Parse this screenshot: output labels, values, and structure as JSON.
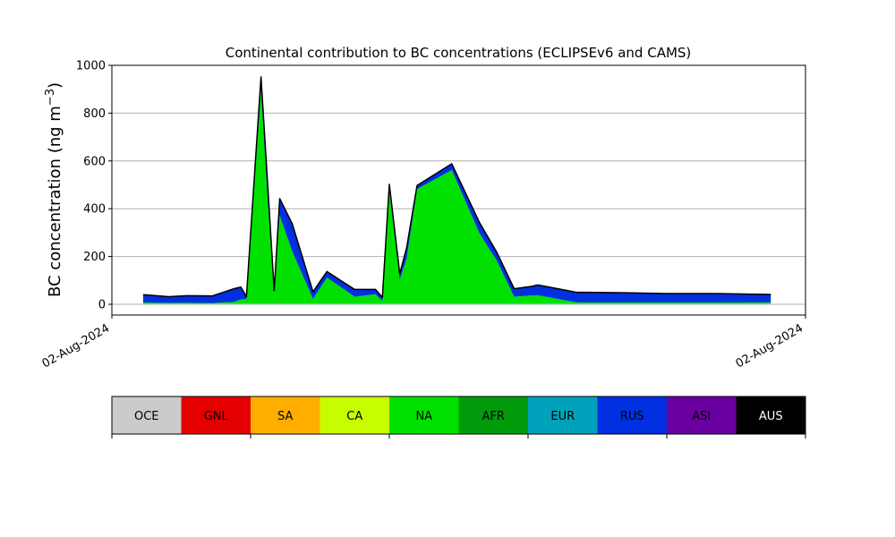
{
  "chart_data": {
    "type": "area",
    "title": "Continental contribution to BC concentrations (ECLIPSEv6 and CAMS)",
    "ylabel": "BC concentration (ng m",
    "ylabel_superscript": "−3",
    "ylabel_close": ")",
    "ylim": [
      -45,
      1000
    ],
    "yticks": [
      0,
      200,
      400,
      600,
      800,
      1000
    ],
    "xtick_labels": [
      "02-Aug-2024",
      "02-Aug-2024"
    ],
    "xlim": [
      0,
      100
    ],
    "grid": "horizontal",
    "stacked": true,
    "x": [
      4.5,
      6.4,
      8.2,
      10.8,
      14.5,
      17.6,
      18.6,
      19.4,
      21.5,
      22.4,
      23.4,
      24.2,
      26.0,
      29.0,
      31.0,
      35.0,
      38.0,
      39.0,
      40.0,
      41.5,
      42.5,
      44.0,
      49.0,
      53.0,
      55.5,
      58.0,
      60.5,
      61.4,
      67.0,
      68.5,
      74.0,
      80.0,
      87.0,
      95.0
    ],
    "series": [
      {
        "name": "OCE",
        "values": [
          2,
          2,
          2,
          2,
          2,
          2,
          2,
          2,
          2,
          2,
          2,
          2,
          2,
          2,
          2,
          2,
          2,
          2,
          2,
          2,
          2,
          2,
          2,
          2,
          2,
          2,
          2,
          2,
          2,
          2,
          2,
          2,
          2,
          2
        ]
      },
      {
        "name": "GNL",
        "values": [
          0,
          0,
          0,
          0,
          0,
          0,
          0,
          0,
          0,
          0,
          0,
          0,
          0,
          0,
          0,
          0,
          0,
          0,
          0,
          0,
          0,
          0,
          0,
          0,
          0,
          0,
          0,
          0,
          0,
          0,
          0,
          0,
          0,
          0
        ]
      },
      {
        "name": "SA",
        "values": [
          0,
          0,
          0,
          0,
          0,
          0,
          0,
          0,
          0,
          0,
          0,
          0,
          0,
          0,
          0,
          0,
          0,
          0,
          0,
          0,
          0,
          0,
          0,
          0,
          0,
          0,
          0,
          0,
          0,
          0,
          0,
          0,
          0,
          0
        ]
      },
      {
        "name": "CA",
        "values": [
          0,
          0,
          0,
          0,
          0,
          0,
          0,
          0,
          0,
          0,
          0,
          0,
          0,
          0,
          0,
          0,
          0,
          0,
          0,
          0,
          0,
          0,
          0,
          0,
          0,
          0,
          0,
          0,
          0,
          0,
          0,
          0,
          0,
          0
        ]
      },
      {
        "name": "NA",
        "values": [
          6,
          4,
          4,
          4,
          3,
          8,
          18,
          20,
          895,
          460,
          45,
          370,
          220,
          20,
          110,
          30,
          40,
          12,
          470,
          100,
          190,
          480,
          560,
          295,
          180,
          30,
          35,
          36,
          6,
          6,
          6,
          6,
          6,
          6
        ]
      },
      {
        "name": "AFR",
        "values": [
          0,
          0,
          0,
          0,
          0,
          0,
          0,
          0,
          0,
          0,
          0,
          0,
          0,
          0,
          0,
          0,
          0,
          0,
          0,
          0,
          0,
          0,
          0,
          0,
          0,
          0,
          0,
          0,
          0,
          0,
          0,
          0,
          0,
          0
        ]
      },
      {
        "name": "EUR",
        "values": [
          0,
          0,
          0,
          0,
          0,
          0,
          0,
          0,
          0,
          0,
          0,
          0,
          0,
          0,
          0,
          0,
          0,
          0,
          0,
          0,
          0,
          0,
          0,
          0,
          0,
          0,
          0,
          0,
          0,
          0,
          0,
          0,
          0,
          0
        ]
      },
      {
        "name": "RUS",
        "values": [
          32,
          30,
          26,
          30,
          30,
          55,
          52,
          10,
          55,
          68,
          10,
          70,
          115,
          30,
          25,
          30,
          20,
          15,
          30,
          26,
          45,
          15,
          26,
          45,
          35,
          33,
          38,
          43,
          42,
          42,
          40,
          37,
          37,
          33
        ]
      },
      {
        "name": "ASI",
        "values": [
          0,
          0,
          0,
          0,
          0,
          0,
          0,
          0,
          0,
          0,
          0,
          0,
          0,
          0,
          0,
          0,
          0,
          0,
          0,
          0,
          0,
          0,
          0,
          0,
          0,
          0,
          0,
          0,
          0,
          0,
          0,
          0,
          0,
          0
        ]
      },
      {
        "name": "AUS",
        "values": [
          0,
          0,
          0,
          0,
          0,
          0,
          0,
          0,
          0,
          0,
          0,
          0,
          0,
          0,
          0,
          0,
          0,
          0,
          0,
          0,
          0,
          0,
          0,
          0,
          0,
          0,
          0,
          0,
          0,
          0,
          0,
          0,
          0,
          0
        ]
      }
    ]
  },
  "legend": {
    "items": [
      {
        "label": "OCE",
        "color": "#cbcbcb",
        "text_color": "#000000"
      },
      {
        "label": "GNL",
        "color": "#e40000",
        "text_color": "#000000"
      },
      {
        "label": "SA",
        "color": "#ffae00",
        "text_color": "#000000"
      },
      {
        "label": "CA",
        "color": "#c8fd00",
        "text_color": "#000000"
      },
      {
        "label": "NA",
        "color": "#00e100",
        "text_color": "#000000"
      },
      {
        "label": "AFR",
        "color": "#009a0a",
        "text_color": "#000000"
      },
      {
        "label": "EUR",
        "color": "#00a2bb",
        "text_color": "#000000"
      },
      {
        "label": "RUS",
        "color": "#0030e0",
        "text_color": "#000000"
      },
      {
        "label": "ASI",
        "color": "#6a00a0",
        "text_color": "#000000"
      },
      {
        "label": "AUS",
        "color": "#000000",
        "text_color": "#ffffff"
      }
    ]
  }
}
